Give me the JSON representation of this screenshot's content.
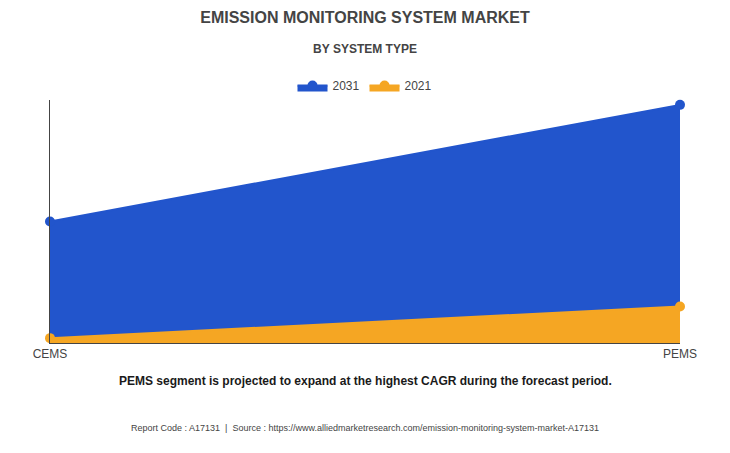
{
  "chart_data": {
    "type": "area",
    "title": "EMISSION MONITORING SYSTEM MARKET",
    "subtitle": "BY SYSTEM TYPE",
    "categories": [
      "CEMS",
      "PEMS"
    ],
    "series": [
      {
        "name": "2021",
        "color": "#F5A623",
        "values": [
          0.02,
          0.15
        ]
      },
      {
        "name": "2031",
        "color": "#2255CC",
        "values": [
          0.5,
          0.98
        ]
      }
    ],
    "ylim": [
      0,
      1.0
    ],
    "yticks": [],
    "tick_labels": "x",
    "grid": false,
    "legend": "top",
    "annotations": [
      "PEMS segment is projected to expand at the highest CAGR during the forecast period.",
      "Report Code : A17131  |  Source : https://www.alliedmarketresearch.com/emission-monitoring-system-market-A17131"
    ]
  }
}
